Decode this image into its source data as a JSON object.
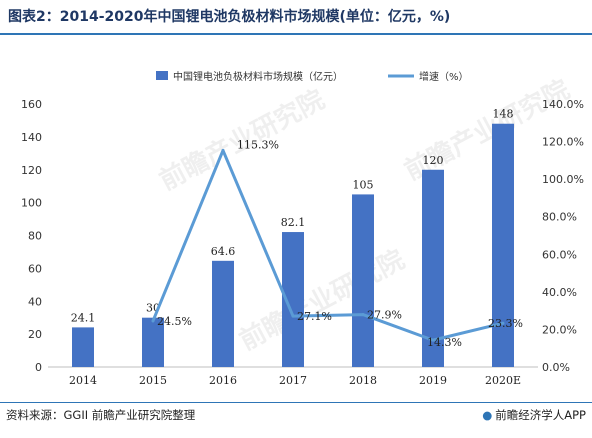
{
  "title": "图表2：2014-2020年中国锂电池负极材料市场规模(单位：亿元，%)",
  "source": "资料来源：GGII 前瞻产业研究院整理",
  "brand": "前瞻经济学人APP",
  "watermark": "前瞻产业研究院",
  "colors": {
    "bar": "#4472c4",
    "line": "#5b9bd5",
    "title": "#1f3864",
    "rule": "#2e75b6"
  },
  "chart_data": {
    "type": "bar",
    "categories": [
      "2014",
      "2015",
      "2016",
      "2017",
      "2018",
      "2019",
      "2020E"
    ],
    "series": [
      {
        "name": "中国锂电池负极材料市场规模（亿元）",
        "type": "bar",
        "axis": "left",
        "values": [
          24.1,
          30,
          64.6,
          82.1,
          105,
          120,
          148
        ],
        "labels": [
          "24.1",
          "30",
          "64.6",
          "82.1",
          "105",
          "120",
          "148"
        ]
      },
      {
        "name": "增速（%）",
        "type": "line",
        "axis": "right",
        "values": [
          null,
          24.5,
          115.3,
          27.1,
          27.9,
          14.3,
          23.3
        ],
        "labels": [
          "",
          "24.5%",
          "115.3%",
          "27.1%",
          "27.9%",
          "14.3%",
          "23.3%"
        ]
      }
    ],
    "y_left": {
      "min": 0,
      "max": 160,
      "ticks": [
        "0",
        "20",
        "40",
        "60",
        "80",
        "100",
        "120",
        "140",
        "160"
      ]
    },
    "y_right": {
      "min": 0,
      "max": 140,
      "ticks": [
        "0.0%",
        "20.0%",
        "40.0%",
        "60.0%",
        "80.0%",
        "100.0%",
        "120.0%",
        "140.0%"
      ]
    },
    "legend": "top"
  }
}
